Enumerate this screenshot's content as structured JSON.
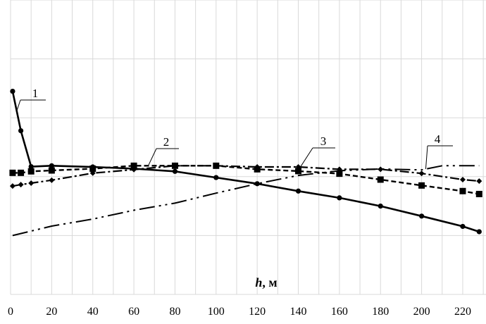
{
  "chart_data": {
    "type": "line",
    "title": "",
    "xlabel": {
      "symbol": "h",
      "unit": ", м"
    },
    "ylabel": "",
    "xlim": [
      0,
      228
    ],
    "ylim": [
      0,
      1
    ],
    "grid": true,
    "x_ticks": [
      0,
      20,
      40,
      60,
      80,
      100,
      120,
      140,
      160,
      180,
      200,
      220
    ],
    "series": [
      {
        "name": "1",
        "style": "solid",
        "marker": "circle",
        "points": [
          [
            1,
            0.69
          ],
          [
            5,
            0.556
          ],
          [
            10,
            0.434
          ],
          [
            20,
            0.437
          ],
          [
            40,
            0.433
          ],
          [
            60,
            0.427
          ],
          [
            80,
            0.418
          ],
          [
            100,
            0.397
          ],
          [
            120,
            0.376
          ],
          [
            140,
            0.351
          ],
          [
            160,
            0.328
          ],
          [
            180,
            0.3
          ],
          [
            200,
            0.266
          ],
          [
            220,
            0.231
          ],
          [
            228,
            0.213
          ]
        ]
      },
      {
        "name": "2",
        "style": "dashed",
        "marker": "square",
        "points": [
          [
            1,
            0.413
          ],
          [
            5,
            0.413
          ],
          [
            10,
            0.418
          ],
          [
            20,
            0.421
          ],
          [
            40,
            0.427
          ],
          [
            60,
            0.437
          ],
          [
            80,
            0.437
          ],
          [
            100,
            0.437
          ],
          [
            120,
            0.425
          ],
          [
            140,
            0.419
          ],
          [
            160,
            0.41
          ],
          [
            180,
            0.39
          ],
          [
            200,
            0.37
          ],
          [
            220,
            0.351
          ],
          [
            228,
            0.341
          ]
        ]
      },
      {
        "name": "3",
        "style": "dash-dot",
        "marker": "diamond",
        "points": [
          [
            1,
            0.368
          ],
          [
            5,
            0.373
          ],
          [
            10,
            0.378
          ],
          [
            20,
            0.388
          ],
          [
            40,
            0.412
          ],
          [
            60,
            0.424
          ],
          [
            80,
            0.437
          ],
          [
            100,
            0.437
          ],
          [
            120,
            0.433
          ],
          [
            140,
            0.433
          ],
          [
            160,
            0.425
          ],
          [
            180,
            0.425
          ],
          [
            200,
            0.411
          ],
          [
            220,
            0.39
          ],
          [
            228,
            0.385
          ]
        ]
      },
      {
        "name": "4",
        "style": "dash-dot-dot",
        "marker": "none",
        "points": [
          [
            1,
            0.2
          ],
          [
            20,
            0.232
          ],
          [
            40,
            0.256
          ],
          [
            60,
            0.286
          ],
          [
            80,
            0.31
          ],
          [
            100,
            0.344
          ],
          [
            120,
            0.376
          ],
          [
            140,
            0.404
          ],
          [
            160,
            0.42
          ],
          [
            180,
            0.426
          ],
          [
            200,
            0.423
          ],
          [
            210,
            0.437
          ],
          [
            228,
            0.437
          ]
        ]
      }
    ],
    "callouts": [
      {
        "series": "1",
        "text": "1"
      },
      {
        "series": "2",
        "text": "2"
      },
      {
        "series": "3",
        "text": "3"
      },
      {
        "series": "4",
        "text": "4"
      }
    ]
  }
}
